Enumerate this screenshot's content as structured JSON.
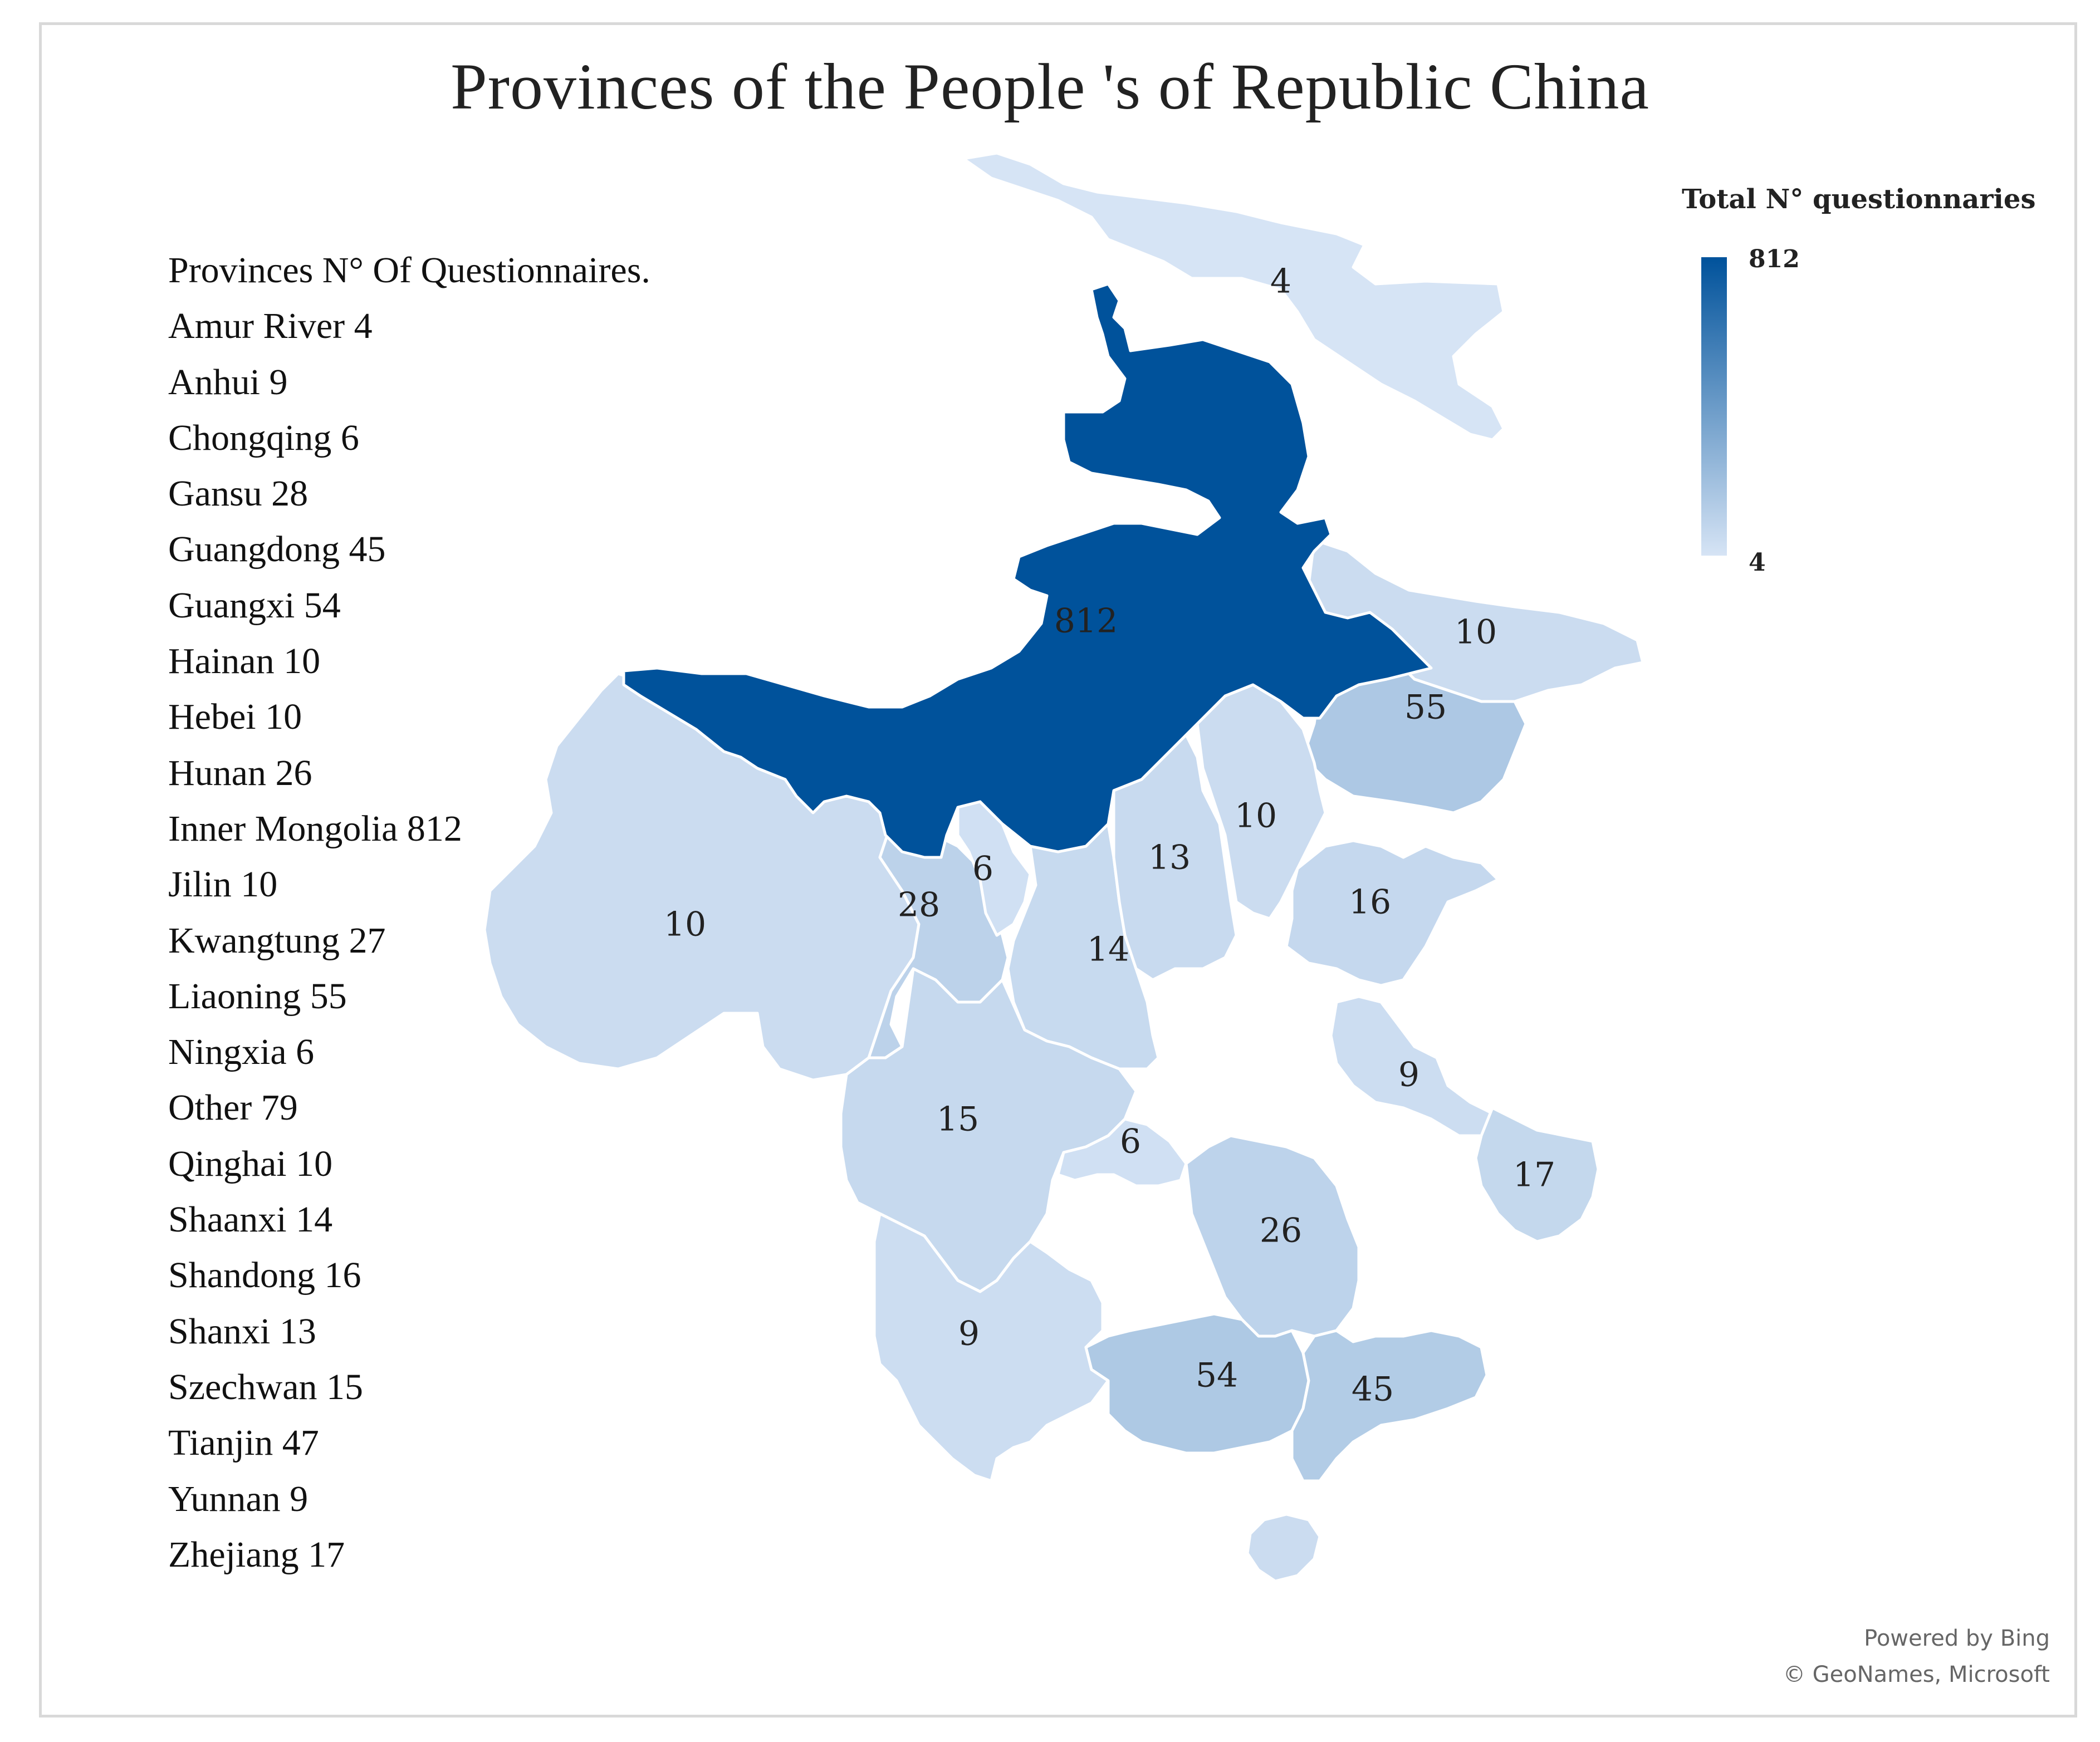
{
  "title": "Provinces of the People 's of Republic China",
  "list_header": "Provinces N° Of Questionnaires.",
  "provinces": [
    {
      "name": "Amur River",
      "value": 4
    },
    {
      "name": "Anhui",
      "value": 9
    },
    {
      "name": "Chongqing",
      "value": 6
    },
    {
      "name": "Gansu",
      "value": 28
    },
    {
      "name": "Guangdong",
      "value": 45
    },
    {
      "name": "Guangxi",
      "value": 54
    },
    {
      "name": "Hainan",
      "value": 10
    },
    {
      "name": "Hebei",
      "value": 10
    },
    {
      "name": "Hunan",
      "value": 26
    },
    {
      "name": "Inner Mongolia",
      "value": 812
    },
    {
      "name": "Jilin",
      "value": 10
    },
    {
      "name": "Kwangtung",
      "value": 27
    },
    {
      "name": "Liaoning",
      "value": 55
    },
    {
      "name": "Ningxia",
      "value": 6
    },
    {
      "name": "Other",
      "value": 79
    },
    {
      "name": "Qinghai",
      "value": 10
    },
    {
      "name": "Shaanxi",
      "value": 14
    },
    {
      "name": "Shandong",
      "value": 16
    },
    {
      "name": "Shanxi",
      "value": 13
    },
    {
      "name": "Szechwan",
      "value": 15
    },
    {
      "name": "Tianjin",
      "value": 47
    },
    {
      "name": "Yunnan",
      "value": 9
    },
    {
      "name": "Zhejiang",
      "value": 17
    }
  ],
  "legend": {
    "title": "Total N° questionnaries",
    "max_label": "812",
    "min_label": "4",
    "color_max": "#00529b",
    "color_min": "#d6e4f5"
  },
  "credits": {
    "line1": "Powered by Bing",
    "line2": "© GeoNames, Microsoft"
  }
}
